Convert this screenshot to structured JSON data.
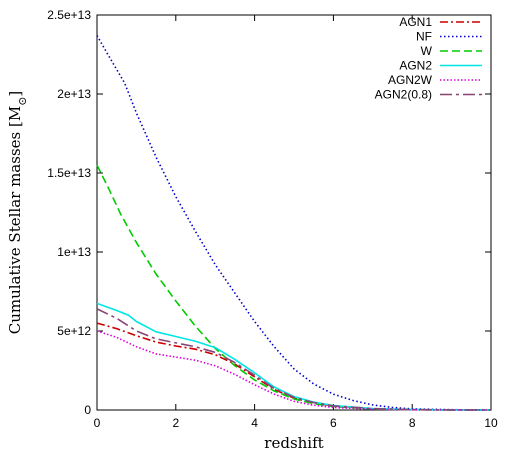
{
  "chart_data": {
    "type": "line",
    "xlabel": "redshift",
    "ylabel": "Cumulative Stellar masses [M",
    "ylabel_sub": "⊙",
    "ylabel_close": "]",
    "xlim": [
      0,
      10
    ],
    "ylim": [
      0,
      25000000000000.0
    ],
    "x_ticks": [
      0,
      2,
      4,
      6,
      8,
      10
    ],
    "x_tick_labels": [
      "0",
      "2",
      "4",
      "6",
      "8",
      "10"
    ],
    "y_ticks": [
      0,
      5000000000000.0,
      10000000000000.0,
      15000000000000.0,
      20000000000000.0,
      25000000000000.0
    ],
    "y_tick_labels": [
      "0",
      "5e+12",
      "1e+13",
      "1.5e+13",
      "2e+13",
      "2.5e+13"
    ],
    "grid": false,
    "legend_position": "top-right",
    "series": [
      {
        "name": "AGN1",
        "color": "#cc0000",
        "dash": "8,3,2,3",
        "x": [
          0,
          0.5,
          1,
          1.5,
          2,
          2.5,
          3,
          3.5,
          4,
          4.5,
          5,
          5.5,
          6,
          7,
          8,
          9,
          10
        ],
        "y": [
          5500000000000.0,
          5150000000000.0,
          4700000000000.0,
          4300000000000.0,
          4050000000000.0,
          3850000000000.0,
          3500000000000.0,
          2900000000000.0,
          2100000000000.0,
          1300000000000.0,
          750000000000.0,
          450000000000.0,
          250000000000.0,
          80000000000.0,
          20000000000.0,
          5000000000.0,
          0
        ]
      },
      {
        "name": "NF",
        "color": "#0000cc",
        "dash": "1.5,2.5",
        "x": [
          0,
          0.3,
          0.7,
          1,
          1.5,
          2,
          2.5,
          3,
          3.5,
          4,
          4.5,
          5,
          5.5,
          6,
          6.5,
          7,
          7.5,
          8,
          9,
          10
        ],
        "y": [
          23700000000000.0,
          22400000000000.0,
          20700000000000.0,
          18800000000000.0,
          16000000000000.0,
          13500000000000.0,
          11300000000000.0,
          9200000000000.0,
          7400000000000.0,
          5600000000000.0,
          4000000000000.0,
          2600000000000.0,
          1650000000000.0,
          1000000000000.0,
          600000000000.0,
          320000000000.0,
          160000000000.0,
          70000000000.0,
          20000000000.0,
          0
        ]
      },
      {
        "name": "W",
        "color": "#00cc00",
        "dash": "8,4",
        "x": [
          0,
          0.3,
          0.6,
          1,
          1.5,
          2,
          2.5,
          3,
          3.5,
          4,
          4.5,
          5,
          5.5,
          6,
          7,
          8,
          9,
          10
        ],
        "y": [
          15500000000000.0,
          14000000000000.0,
          12400000000000.0,
          10600000000000.0,
          8600000000000.0,
          6900000000000.0,
          5300000000000.0,
          3900000000000.0,
          2800000000000.0,
          1900000000000.0,
          1200000000000.0,
          700000000000.0,
          400000000000.0,
          220000000000.0,
          60000000000.0,
          15000000000.0,
          4000000000.0,
          0
        ]
      },
      {
        "name": "AGN2",
        "color": "#00e5e5",
        "dash": "",
        "x": [
          0,
          0.5,
          0.8,
          1,
          1.5,
          2,
          2.5,
          3,
          3.5,
          4,
          4.5,
          5,
          5.5,
          6,
          7,
          8,
          9,
          10
        ],
        "y": [
          6750000000000.0,
          6300000000000.0,
          6000000000000.0,
          5600000000000.0,
          4950000000000.0,
          4650000000000.0,
          4350000000000.0,
          3950000000000.0,
          3200000000000.0,
          2350000000000.0,
          1450000000000.0,
          850000000000.0,
          500000000000.0,
          280000000000.0,
          90000000000.0,
          25000000000.0,
          6000000000.0,
          0
        ]
      },
      {
        "name": "AGN2W",
        "color": "#dd00dd",
        "dash": "1.5,2",
        "x": [
          0,
          0.5,
          1,
          1.5,
          2,
          2.5,
          3,
          3.5,
          4,
          4.5,
          5,
          5.5,
          6,
          7,
          8,
          9,
          10
        ],
        "y": [
          5000000000000.0,
          4600000000000.0,
          4000000000000.0,
          3550000000000.0,
          3350000000000.0,
          3150000000000.0,
          2800000000000.0,
          2250000000000.0,
          1600000000000.0,
          1000000000000.0,
          550000000000.0,
          300000000000.0,
          160000000000.0,
          50000000000.0,
          12000000000.0,
          3000000000.0,
          0
        ]
      },
      {
        "name": "AGN2(0.8)",
        "color": "#884477",
        "dash": "12,4,3,4",
        "x": [
          0,
          0.5,
          1,
          1.5,
          2,
          2.5,
          3,
          3.5,
          4,
          4.5,
          5,
          5.5,
          6,
          7,
          8,
          9,
          10
        ],
        "y": [
          6400000000000.0,
          5800000000000.0,
          5000000000000.0,
          4500000000000.0,
          4250000000000.0,
          4000000000000.0,
          3650000000000.0,
          3000000000000.0,
          2200000000000.0,
          1350000000000.0,
          800000000000.0,
          470000000000.0,
          260000000000.0,
          85000000000.0,
          22000000000.0,
          5000000000.0,
          0
        ]
      }
    ]
  }
}
